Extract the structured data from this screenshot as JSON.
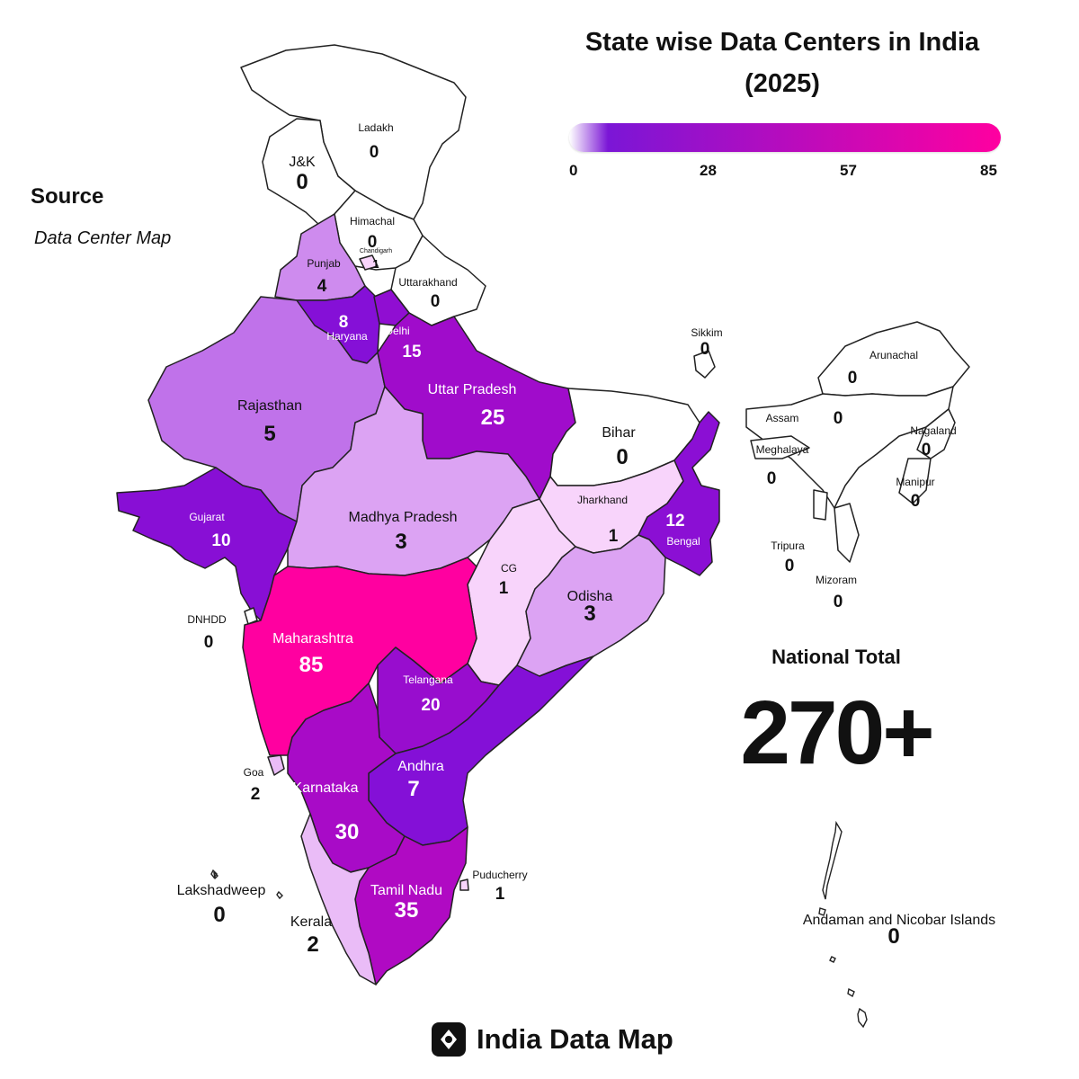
{
  "title": {
    "line1": "State wise Data Centers in India",
    "line2": "(2025)"
  },
  "legend": {
    "ticks": [
      "0",
      "28",
      "57",
      "85"
    ],
    "colors": [
      "#ffffff",
      "#7b16d6",
      "#ff00a0"
    ]
  },
  "source": {
    "heading": "Source",
    "value": "Data Center Map"
  },
  "national_total": {
    "heading": "National Total",
    "value": "270+"
  },
  "brand": {
    "name": "India Data Map",
    "icon": "compass-diamond-icon"
  },
  "regions": [
    {
      "id": "ladakh",
      "label": "Ladakh",
      "value": 0
    },
    {
      "id": "jk",
      "label": "J&K",
      "value": 0
    },
    {
      "id": "himachal",
      "label": "Himachal",
      "value": 0
    },
    {
      "id": "chandigarh",
      "label": "Chandigarh",
      "value": 1
    },
    {
      "id": "punjab",
      "label": "Punjab",
      "value": 4
    },
    {
      "id": "uttarakhand",
      "label": "Uttarakhand",
      "value": 0
    },
    {
      "id": "haryana",
      "label": "Haryana",
      "value": 8
    },
    {
      "id": "delhi",
      "label": "Delhi",
      "value": 15
    },
    {
      "id": "rajasthan",
      "label": "Rajasthan",
      "value": 5
    },
    {
      "id": "uttar-pradesh",
      "label": "Uttar Pradesh",
      "value": 25
    },
    {
      "id": "bihar",
      "label": "Bihar",
      "value": 0
    },
    {
      "id": "sikkim",
      "label": "Sikkim",
      "value": 0
    },
    {
      "id": "arunachal",
      "label": "Arunachal",
      "value": 0
    },
    {
      "id": "assam",
      "label": "Assam",
      "value": 0
    },
    {
      "id": "nagaland",
      "label": "Nagaland",
      "value": 0
    },
    {
      "id": "meghalaya",
      "label": "Meghalaya",
      "value": 0
    },
    {
      "id": "manipur",
      "label": "Manipur",
      "value": 0
    },
    {
      "id": "tripura",
      "label": "Tripura",
      "value": 0
    },
    {
      "id": "mizoram",
      "label": "Mizoram",
      "value": 0
    },
    {
      "id": "gujarat",
      "label": "Gujarat",
      "value": 10
    },
    {
      "id": "madhya-pradesh",
      "label": "Madhya Pradesh",
      "value": 3
    },
    {
      "id": "jharkhand",
      "label": "Jharkhand",
      "value": 1
    },
    {
      "id": "bengal",
      "label": "Bengal",
      "value": 12
    },
    {
      "id": "chhattisgarh",
      "label": "CG",
      "value": 1
    },
    {
      "id": "odisha",
      "label": "Odisha",
      "value": 3
    },
    {
      "id": "dnhdd",
      "label": "DNHDD",
      "value": 0
    },
    {
      "id": "maharashtra",
      "label": "Maharashtra",
      "value": 85
    },
    {
      "id": "telangana",
      "label": "Telangana",
      "value": 20
    },
    {
      "id": "goa",
      "label": "Goa",
      "value": 2
    },
    {
      "id": "andhra",
      "label": "Andhra",
      "value": 7
    },
    {
      "id": "karnataka",
      "label": "Karnataka",
      "value": 30
    },
    {
      "id": "puducherry",
      "label": "Puducherry",
      "value": 1
    },
    {
      "id": "lakshadweep",
      "label": "Lakshadweep",
      "value": 0
    },
    {
      "id": "tamil-nadu",
      "label": "Tamil Nadu",
      "value": 35
    },
    {
      "id": "kerala",
      "label": "Kerala",
      "value": 2
    },
    {
      "id": "andaman",
      "label": "Andaman and Nicobar Islands",
      "value": 0
    }
  ]
}
